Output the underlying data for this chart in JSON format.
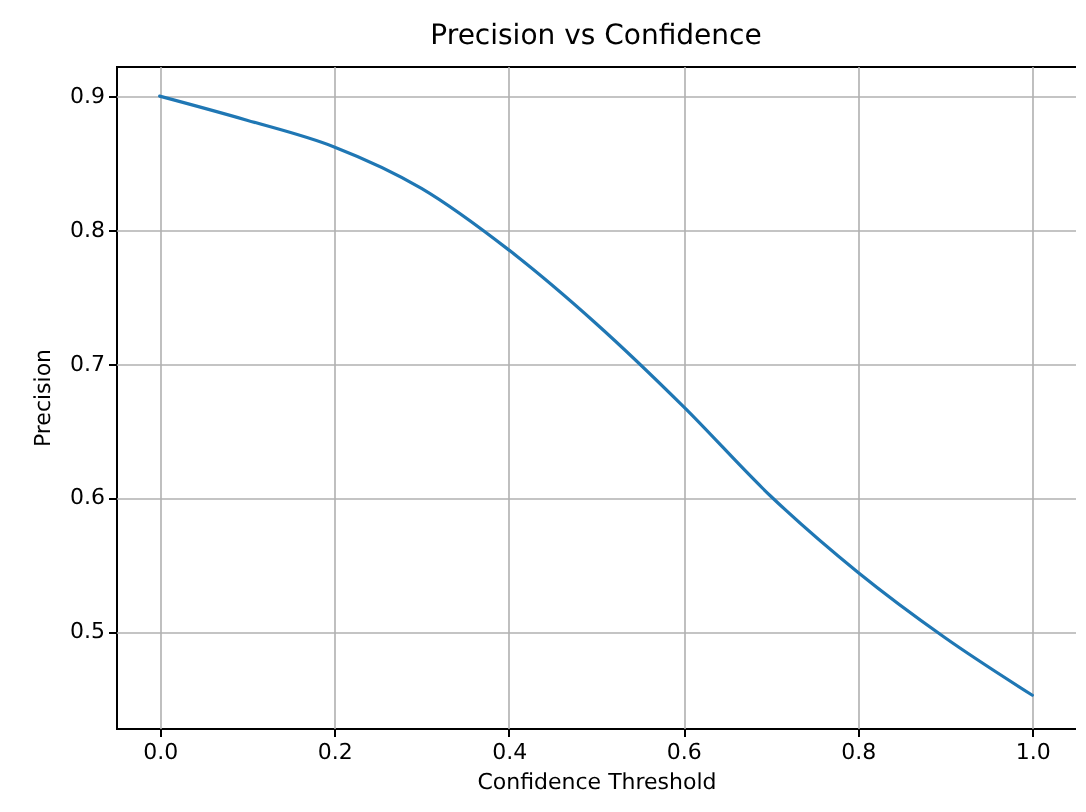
{
  "chart_data": {
    "type": "line",
    "title": "Precision vs Confidence",
    "xlabel": "Confidence Threshold",
    "ylabel": "Precision",
    "x": [
      0,
      0.1,
      0.2,
      0.3,
      0.4,
      0.5,
      0.6,
      0.7,
      0.8,
      0.9,
      1.0
    ],
    "series": [
      {
        "color": "#1f77b4",
        "values": [
          0.9,
          0.882,
          0.862,
          0.831,
          0.785,
          0.73,
          0.668,
          0.601,
          0.544,
          0.495,
          0.452
        ]
      }
    ],
    "xlim": [
      -0.05,
      1.05
    ],
    "xticks": [
      {
        "value": 0,
        "label": "0.0"
      },
      0.2,
      0.4,
      0.6,
      0.8,
      {
        "value": 1,
        "label": "1.0"
      }
    ],
    "ylim": [
      0.4275,
      0.9225
    ],
    "yticks": [
      0.5,
      0.6,
      0.7,
      0.8,
      0.9
    ],
    "grid": true,
    "marker": "none",
    "line_style": "solid"
  }
}
